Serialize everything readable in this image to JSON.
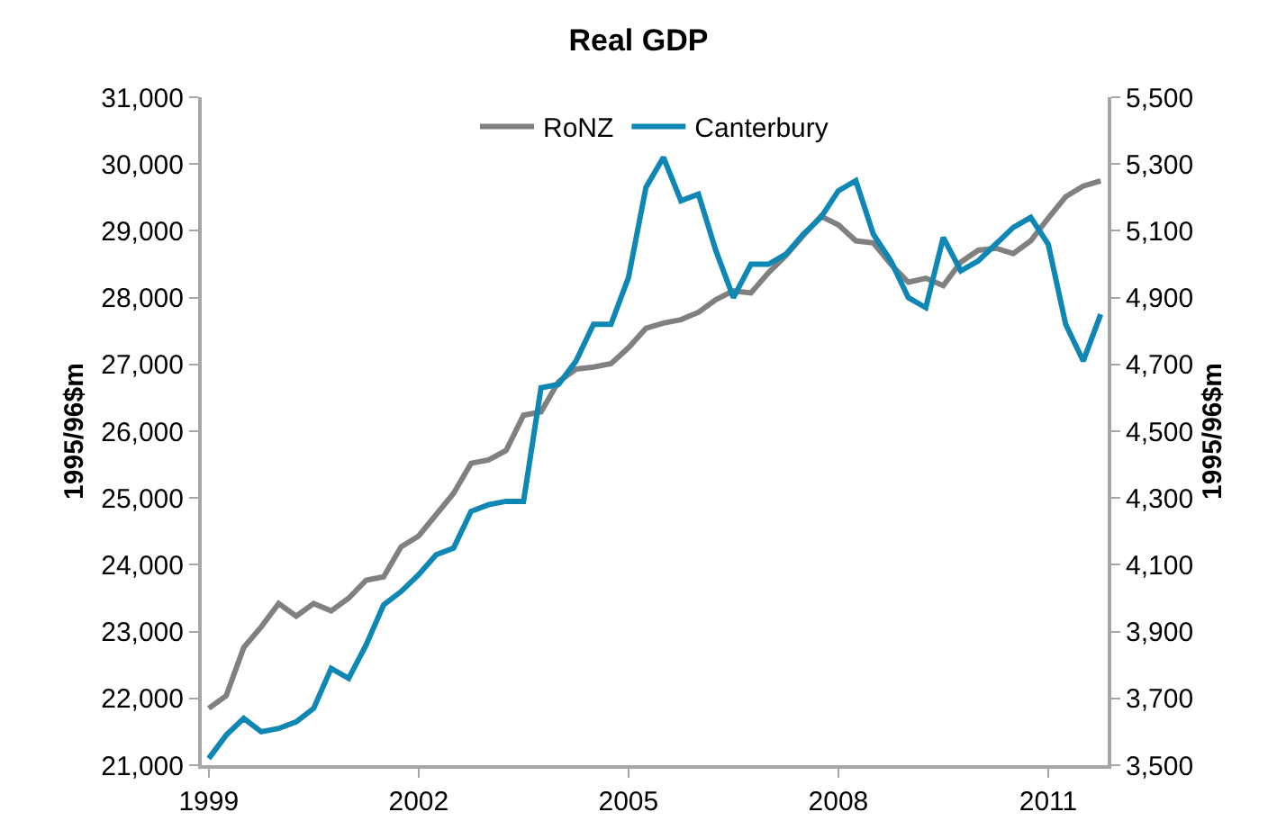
{
  "chart_data": {
    "type": "line",
    "title": "Real GDP",
    "ylabel": "1995/96$m",
    "y2label": "1995/96$m",
    "x": [
      1999,
      1999.25,
      1999.5,
      1999.75,
      2000,
      2000.25,
      2000.5,
      2000.75,
      2001,
      2001.25,
      2001.5,
      2001.75,
      2002,
      2002.25,
      2002.5,
      2002.75,
      2003,
      2003.25,
      2003.5,
      2003.75,
      2004,
      2004.25,
      2004.5,
      2004.75,
      2005,
      2005.25,
      2005.5,
      2005.75,
      2006,
      2006.25,
      2006.5,
      2006.75,
      2007,
      2007.25,
      2007.5,
      2007.75,
      2008,
      2008.25,
      2008.5,
      2008.75,
      2009,
      2009.25,
      2009.5,
      2009.75,
      2010,
      2010.25,
      2010.5,
      2010.75,
      2011,
      2011.25,
      2011.5,
      2011.75
    ],
    "series": [
      {
        "name": "RoNZ",
        "color": "#808080",
        "values": [
          21850,
          22040,
          22760,
          23070,
          23420,
          23230,
          23420,
          23310,
          23500,
          23770,
          23820,
          24270,
          24430,
          24750,
          25070,
          25520,
          25570,
          25710,
          26240,
          26290,
          26740,
          26930,
          26960,
          27010,
          27250,
          27540,
          27620,
          27670,
          27780,
          27970,
          28100,
          28070,
          28370,
          28630,
          28930,
          29220,
          29090,
          28850,
          28820,
          28500,
          28230,
          28290,
          28180,
          28530,
          28710,
          28740,
          28660,
          28850,
          29190,
          29510,
          29670,
          29750
        ]
      },
      {
        "name": "Canterbury",
        "color": "#0f87b4",
        "axis": "y2",
        "values": [
          3520,
          3590,
          3640,
          3600,
          3610,
          3630,
          3670,
          3790,
          3760,
          3860,
          3980,
          4020,
          4070,
          4130,
          4150,
          4260,
          4280,
          4290,
          4290,
          4630,
          4640,
          4710,
          4820,
          4820,
          4960,
          5230,
          5320,
          5190,
          5210,
          5040,
          4900,
          5000,
          5000,
          5030,
          5090,
          5140,
          5220,
          5250,
          5090,
          5010,
          4900,
          4870,
          5080,
          4980,
          5010,
          5060,
          5110,
          5140,
          5060,
          4820,
          4710,
          4850
        ]
      }
    ],
    "xlim": [
      1998.9,
      2011.85
    ],
    "xticks": [
      1999,
      2002,
      2005,
      2008,
      2011
    ],
    "ylim": [
      21000,
      31000
    ],
    "yticks": [
      {
        "value": 21000,
        "label": "21,000"
      },
      {
        "value": 22000,
        "label": "22,000"
      },
      {
        "value": 23000,
        "label": "23,000"
      },
      {
        "value": 24000,
        "label": "24,000"
      },
      {
        "value": 25000,
        "label": "25,000"
      },
      {
        "value": 26000,
        "label": "26,000"
      },
      {
        "value": 27000,
        "label": "27,000"
      },
      {
        "value": 28000,
        "label": "28,000"
      },
      {
        "value": 29000,
        "label": "29,000"
      },
      {
        "value": 30000,
        "label": "30,000"
      },
      {
        "value": 31000,
        "label": "31,000"
      }
    ],
    "y2lim": [
      3500,
      5500
    ],
    "y2ticks": [
      {
        "value": 3500,
        "label": "3,500"
      },
      {
        "value": 3700,
        "label": "3,700"
      },
      {
        "value": 3900,
        "label": "3,900"
      },
      {
        "value": 4100,
        "label": "4,100"
      },
      {
        "value": 4300,
        "label": "4,300"
      },
      {
        "value": 4500,
        "label": "4,500"
      },
      {
        "value": 4700,
        "label": "4,700"
      },
      {
        "value": 4900,
        "label": "4,900"
      },
      {
        "value": 5100,
        "label": "5,100"
      },
      {
        "value": 5300,
        "label": "5,300"
      },
      {
        "value": 5500,
        "label": "5,500"
      }
    ],
    "legend": "top",
    "marker": "none",
    "line_style": "solid"
  }
}
